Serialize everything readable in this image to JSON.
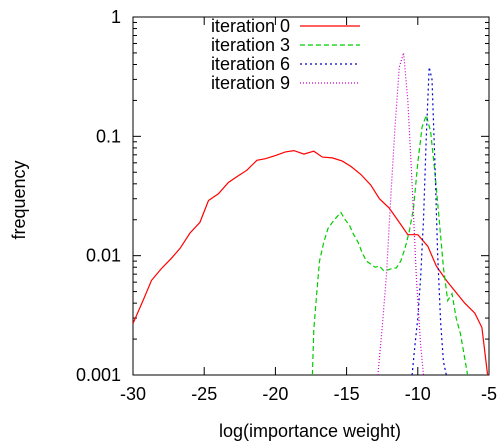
{
  "chart_data": {
    "type": "line",
    "xlabel": "log(importance weight)",
    "ylabel": "frequency",
    "title": "",
    "xlim": [
      -30,
      -5
    ],
    "ylim": [
      0.001,
      1
    ],
    "yscale": "log",
    "grid": false,
    "legend_position": "top-right",
    "x_ticks": [
      {
        "value": -30,
        "label": "-30"
      },
      {
        "value": -25,
        "label": "-25"
      },
      {
        "value": -20,
        "label": "-20"
      },
      {
        "value": -15,
        "label": "-15"
      },
      {
        "value": -10,
        "label": "-10"
      },
      {
        "value": -5,
        "label": "-5"
      }
    ],
    "y_ticks": [
      {
        "value": 0.001,
        "label": "0.001"
      },
      {
        "value": 0.01,
        "label": "0.01"
      },
      {
        "value": 0.1,
        "label": "0.1"
      },
      {
        "value": 1,
        "label": "1"
      }
    ],
    "series": [
      {
        "name": "iteration 0",
        "color": "#ff0000",
        "dash": "",
        "points": [
          [
            -30,
            0.0027
          ],
          [
            -29.3,
            0.0042
          ],
          [
            -28.7,
            0.0062
          ],
          [
            -28,
            0.0078
          ],
          [
            -27.3,
            0.0095
          ],
          [
            -26.7,
            0.0115
          ],
          [
            -26,
            0.0155
          ],
          [
            -25.3,
            0.019
          ],
          [
            -24.7,
            0.029
          ],
          [
            -24,
            0.033
          ],
          [
            -23.3,
            0.041
          ],
          [
            -22.7,
            0.046
          ],
          [
            -22,
            0.052
          ],
          [
            -21.3,
            0.063
          ],
          [
            -20.7,
            0.065
          ],
          [
            -20,
            0.069
          ],
          [
            -19.3,
            0.074
          ],
          [
            -18.7,
            0.076
          ],
          [
            -18,
            0.071
          ],
          [
            -17.3,
            0.075
          ],
          [
            -16.7,
            0.067
          ],
          [
            -16,
            0.066
          ],
          [
            -15.3,
            0.062
          ],
          [
            -14.7,
            0.056
          ],
          [
            -14,
            0.048
          ],
          [
            -13.3,
            0.039
          ],
          [
            -12.7,
            0.03
          ],
          [
            -12,
            0.025
          ],
          [
            -11.3,
            0.019
          ],
          [
            -10.7,
            0.015
          ],
          [
            -10,
            0.015
          ],
          [
            -9.3,
            0.012
          ],
          [
            -8.7,
            0.0082
          ],
          [
            -8,
            0.0062
          ],
          [
            -7.3,
            0.0049
          ],
          [
            -6.7,
            0.004
          ],
          [
            -6,
            0.0033
          ],
          [
            -5.5,
            0.0025
          ],
          [
            -5.1,
            0.001
          ]
        ]
      },
      {
        "name": "iteration 3",
        "color": "#00cc00",
        "dash": "5,3",
        "points": [
          [
            -17.4,
            0.001
          ],
          [
            -17.3,
            0.0024
          ],
          [
            -17.1,
            0.0048
          ],
          [
            -16.9,
            0.009
          ],
          [
            -16.6,
            0.013
          ],
          [
            -16.3,
            0.017
          ],
          [
            -16.0,
            0.019
          ],
          [
            -15.7,
            0.021
          ],
          [
            -15.4,
            0.023
          ],
          [
            -15.1,
            0.02
          ],
          [
            -14.8,
            0.018
          ],
          [
            -14.5,
            0.015
          ],
          [
            -14.2,
            0.013
          ],
          [
            -13.9,
            0.0105
          ],
          [
            -13.6,
            0.009
          ],
          [
            -13.3,
            0.0085
          ],
          [
            -13.0,
            0.008
          ],
          [
            -12.7,
            0.0082
          ],
          [
            -12.4,
            0.0075
          ],
          [
            -12.1,
            0.0076
          ],
          [
            -11.8,
            0.0078
          ],
          [
            -11.5,
            0.0079
          ],
          [
            -11.2,
            0.009
          ],
          [
            -10.9,
            0.0115
          ],
          [
            -10.6,
            0.016
          ],
          [
            -10.3,
            0.025
          ],
          [
            -10.0,
            0.06
          ],
          [
            -9.7,
            0.12
          ],
          [
            -9.4,
            0.15
          ],
          [
            -9.1,
            0.11
          ],
          [
            -8.8,
            0.05
          ],
          [
            -8.5,
            0.02
          ],
          [
            -8.2,
            0.008
          ],
          [
            -7.9,
            0.0042
          ],
          [
            -7.6,
            0.0048
          ],
          [
            -7.3,
            0.003
          ],
          [
            -7.0,
            0.0022
          ],
          [
            -6.8,
            0.0016
          ],
          [
            -6.5,
            0.001
          ]
        ]
      },
      {
        "name": "iteration 6",
        "color": "#0000cc",
        "dash": "2,3",
        "points": [
          [
            -10.4,
            0.001
          ],
          [
            -10.2,
            0.0018
          ],
          [
            -10.0,
            0.003
          ],
          [
            -9.8,
            0.0065
          ],
          [
            -9.6,
            0.02
          ],
          [
            -9.4,
            0.1
          ],
          [
            -9.2,
            0.38
          ],
          [
            -9.0,
            0.3
          ],
          [
            -8.8,
            0.06
          ],
          [
            -8.6,
            0.01
          ],
          [
            -8.4,
            0.0028
          ],
          [
            -8.2,
            0.0013
          ],
          [
            -8.0,
            0.001
          ]
        ]
      },
      {
        "name": "iteration 9",
        "color": "#cc00cc",
        "dash": "1,2",
        "points": [
          [
            -12.8,
            0.001
          ],
          [
            -12.5,
            0.0025
          ],
          [
            -12.2,
            0.007
          ],
          [
            -11.9,
            0.03
          ],
          [
            -11.6,
            0.12
          ],
          [
            -11.3,
            0.38
          ],
          [
            -11.0,
            0.5
          ],
          [
            -10.7,
            0.2
          ],
          [
            -10.4,
            0.04
          ],
          [
            -10.1,
            0.0065
          ],
          [
            -9.8,
            0.0018
          ],
          [
            -9.6,
            0.001
          ]
        ]
      }
    ]
  }
}
